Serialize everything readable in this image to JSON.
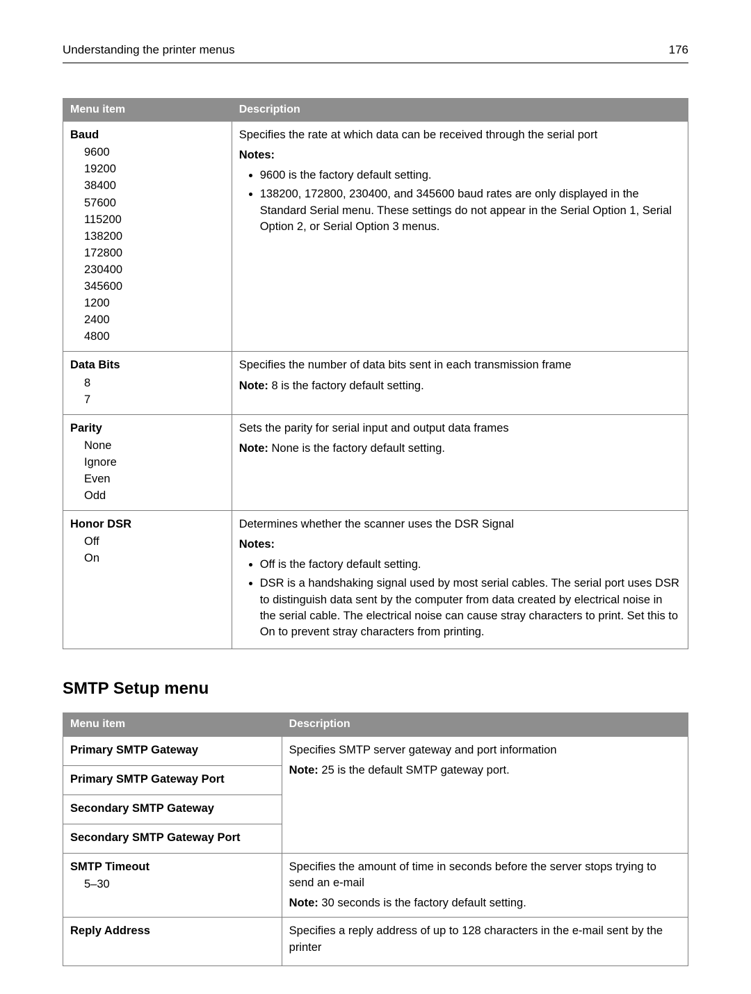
{
  "header": {
    "title": "Understanding the printer menus",
    "page": "176"
  },
  "table1": {
    "col_menu": "Menu item",
    "col_desc": "Description"
  },
  "t1r1": {
    "name": "Baud",
    "opts": [
      "9600",
      "19200",
      "38400",
      "57600",
      "115200",
      "138200",
      "172800",
      "230400",
      "345600",
      "1200",
      "2400",
      "4800"
    ],
    "intro": "Specifies the rate at which data can be received through the serial port",
    "notes_label": "Notes:",
    "notes": [
      "9600 is the factory default setting.",
      "138200, 172800, 230400, and 345600 baud rates are only displayed in the Standard Serial menu. These settings do not appear in the Serial Option 1, Serial Option 2, or Serial Option 3 menus."
    ]
  },
  "t1r2": {
    "name": "Data Bits",
    "opts": [
      "8",
      "7"
    ],
    "intro": "Specifies the number of data bits sent in each transmission frame",
    "note_lbl": "Note:",
    "note_txt": " 8 is the factory default setting."
  },
  "t1r3": {
    "name": "Parity",
    "opts": [
      "None",
      "Ignore",
      "Even",
      "Odd"
    ],
    "intro": "Sets the parity for serial input and output data frames",
    "note_lbl": "Note:",
    "note_txt": " None is the factory default setting."
  },
  "t1r4": {
    "name": "Honor DSR",
    "opts": [
      "Off",
      "On"
    ],
    "intro": "Determines whether the scanner uses the DSR Signal",
    "notes_label": "Notes:",
    "notes": [
      "Off is the factory default setting.",
      "DSR is a handshaking signal used by most serial cables. The serial port uses DSR to distinguish data sent by the computer from data created by electrical noise in the serial cable. The electrical noise can cause stray characters to print. Set this to On to prevent stray characters from printing."
    ]
  },
  "section2_title": "SMTP Setup menu",
  "table2": {
    "col_menu": "Menu item",
    "col_desc": "Description"
  },
  "t2r1a": {
    "name": "Primary SMTP Gateway"
  },
  "t2r1b": {
    "name": "Primary SMTP Gateway Port"
  },
  "t2r1c": {
    "name": "Secondary SMTP Gateway"
  },
  "t2r1d": {
    "name": "Secondary SMTP Gateway Port"
  },
  "t2r1_desc": {
    "intro": "Specifies SMTP server gateway and port information",
    "note_lbl": "Note:",
    "note_txt": " 25 is the default SMTP gateway port."
  },
  "t2r2": {
    "name": "SMTP Timeout",
    "opt": "5–30",
    "intro": "Specifies the amount of time in seconds before the server stops trying to send an e-mail",
    "note_lbl": "Note:",
    "note_txt": " 30 seconds is the factory default setting."
  },
  "t2r3": {
    "name": "Reply Address",
    "intro": "Specifies a reply address of up to 128 characters in the e-mail sent by the printer"
  }
}
